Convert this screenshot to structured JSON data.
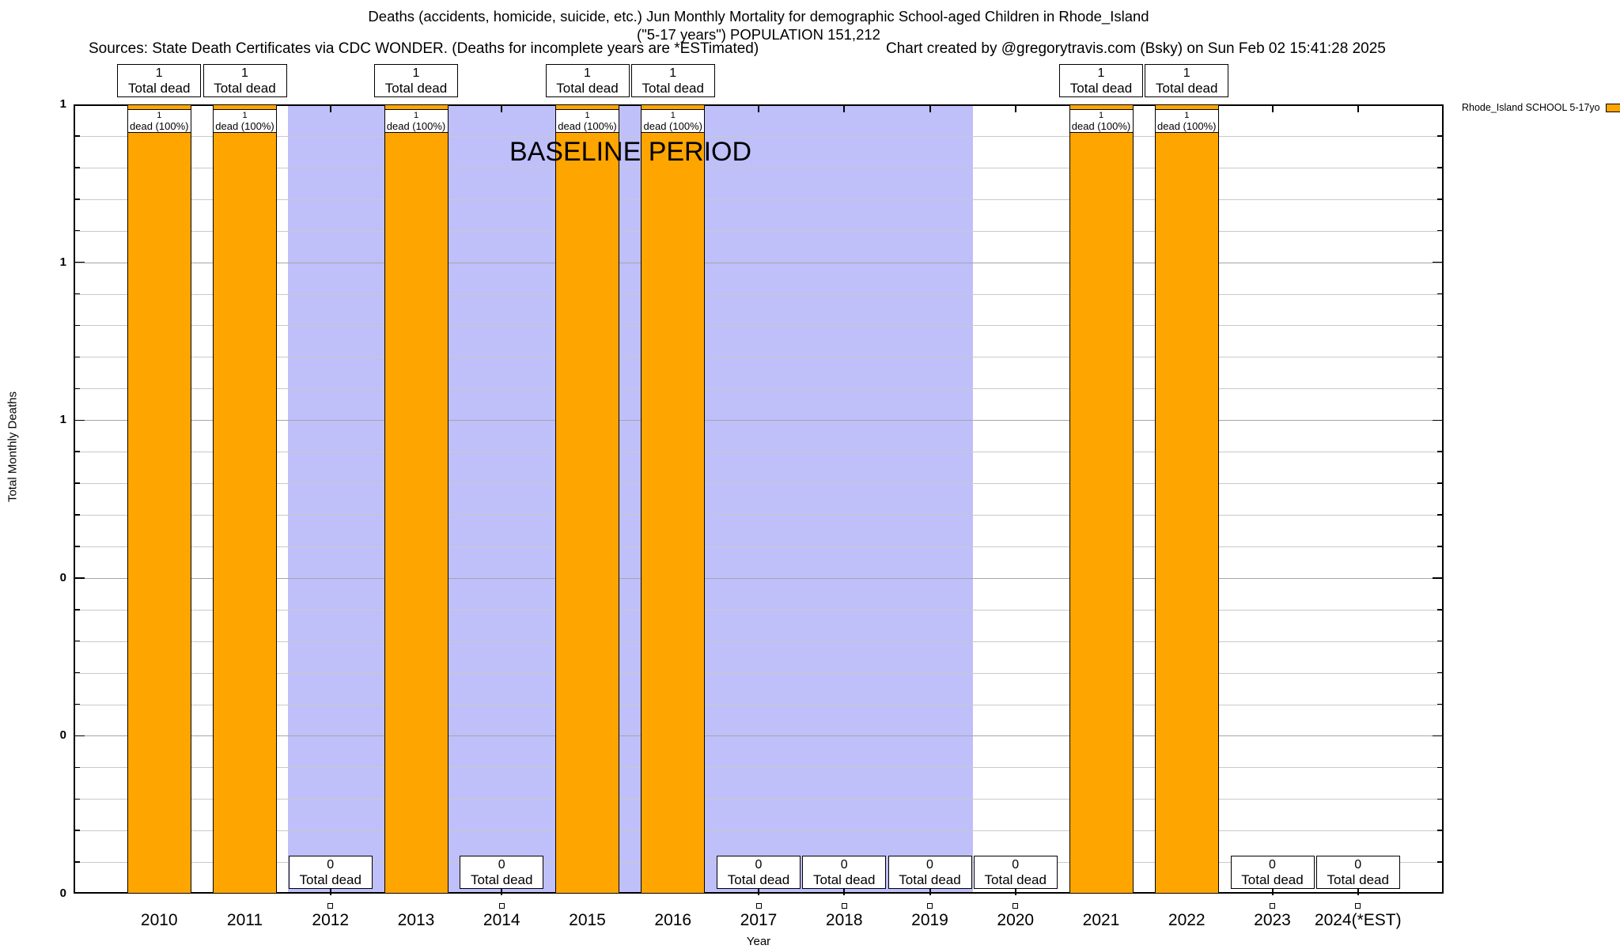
{
  "title": {
    "line1": "Deaths (accidents, homicide, suicide, etc.) Jun Monthly Mortality for demographic School-aged Children in Rhode_Island",
    "line2": "(\"5-17 years\") POPULATION 151,212"
  },
  "credits": {
    "sources": "Sources: State Death Certificates via CDC WONDER. (Deaths for incomplete years are *ESTimated)",
    "created": "Chart created by @gregorytravis.com (Bsky) on Sun Feb 02 15:41:28 2025"
  },
  "legend": {
    "label": "Rhode_Island SCHOOL 5-17yo",
    "color": "#FFA500"
  },
  "chart_data": {
    "type": "bar",
    "title": "Deaths (accidents, homicide, suicide, etc.) Jun Monthly Mortality for demographic School-aged Children in Rhode_Island (\"5-17 years\") POPULATION 151,212",
    "xlabel": "Year",
    "ylabel": "Total Monthly Deaths",
    "ylim": [
      0,
      1
    ],
    "x_range": [
      2009,
      2025
    ],
    "grid": "horizontal",
    "legend_position": "top-right-outside",
    "series_name": "Rhode_Island SCHOOL 5-17yo",
    "bar_color": "#FFA500",
    "categories": [
      "2010",
      "2011",
      "2012",
      "2013",
      "2014",
      "2015",
      "2016",
      "2017",
      "2018",
      "2019",
      "2020",
      "2021",
      "2022",
      "2023",
      "2024(*EST)"
    ],
    "values": [
      1,
      1,
      0,
      1,
      0,
      1,
      1,
      0,
      0,
      0,
      0,
      1,
      1,
      0,
      0
    ],
    "yticks": [
      {
        "value": 1.0,
        "label": "1"
      },
      {
        "value": 0.8,
        "label": "1"
      },
      {
        "value": 0.6,
        "label": "1"
      },
      {
        "value": 0.4,
        "label": "0"
      },
      {
        "value": 0.2,
        "label": "0"
      },
      {
        "value": 0.0,
        "label": "0"
      }
    ],
    "baseline": {
      "label": "BASELINE PERIOD",
      "from": 2011.5,
      "to": 2019.5,
      "color": "#BFBFFA"
    },
    "labels": {
      "total_dead": "Total dead",
      "dead_pct": "dead (100%)"
    },
    "colors": {
      "grid_major": "#a6a6a6",
      "grid_minor": "#c9c9c9",
      "axis": "#000000"
    }
  }
}
